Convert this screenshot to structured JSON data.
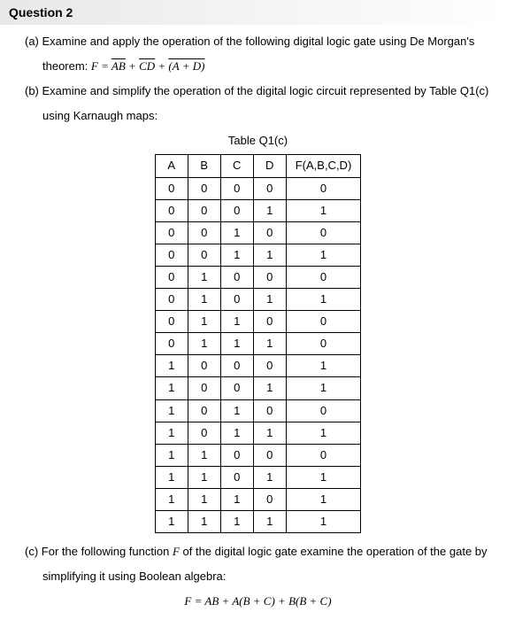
{
  "header": "Question 2",
  "partA": {
    "label": "(a)",
    "text": "Examine and apply the operation of the following digital logic gate using De Morgan's",
    "line2_prefix": "theorem: ",
    "formula_lhs": "F = ",
    "term1a": "AB",
    "plus1": " + ",
    "term1b": "CD",
    "plus2": " + ",
    "term2": "(A + D)"
  },
  "partB": {
    "label": "(b)",
    "text": "Examine and simplify the operation of the digital logic circuit represented by Table Q1(c)",
    "line2": "using Karnaugh maps:"
  },
  "table": {
    "caption": "Table Q1(c)",
    "headers": [
      "A",
      "B",
      "C",
      "D",
      "F(A,B,C,D)"
    ],
    "rows": [
      [
        "0",
        "0",
        "0",
        "0",
        "0"
      ],
      [
        "0",
        "0",
        "0",
        "1",
        "1"
      ],
      [
        "0",
        "0",
        "1",
        "0",
        "0"
      ],
      [
        "0",
        "0",
        "1",
        "1",
        "1"
      ],
      [
        "0",
        "1",
        "0",
        "0",
        "0"
      ],
      [
        "0",
        "1",
        "0",
        "1",
        "1"
      ],
      [
        "0",
        "1",
        "1",
        "0",
        "0"
      ],
      [
        "0",
        "1",
        "1",
        "1",
        "0"
      ],
      [
        "1",
        "0",
        "0",
        "0",
        "1"
      ],
      [
        "1",
        "0",
        "0",
        "1",
        "1"
      ],
      [
        "1",
        "0",
        "1",
        "0",
        "0"
      ],
      [
        "1",
        "0",
        "1",
        "1",
        "1"
      ],
      [
        "1",
        "1",
        "0",
        "0",
        "0"
      ],
      [
        "1",
        "1",
        "0",
        "1",
        "1"
      ],
      [
        "1",
        "1",
        "1",
        "0",
        "1"
      ],
      [
        "1",
        "1",
        "1",
        "1",
        "1"
      ]
    ]
  },
  "partC": {
    "label": "(c)",
    "text_pre": "For the following function ",
    "F": "F",
    "text_post": " of the digital logic gate examine the operation of the gate by",
    "line2": "simplifying it using Boolean algebra:",
    "formula": "F = AB + A(B + C) + B(B + C)"
  }
}
